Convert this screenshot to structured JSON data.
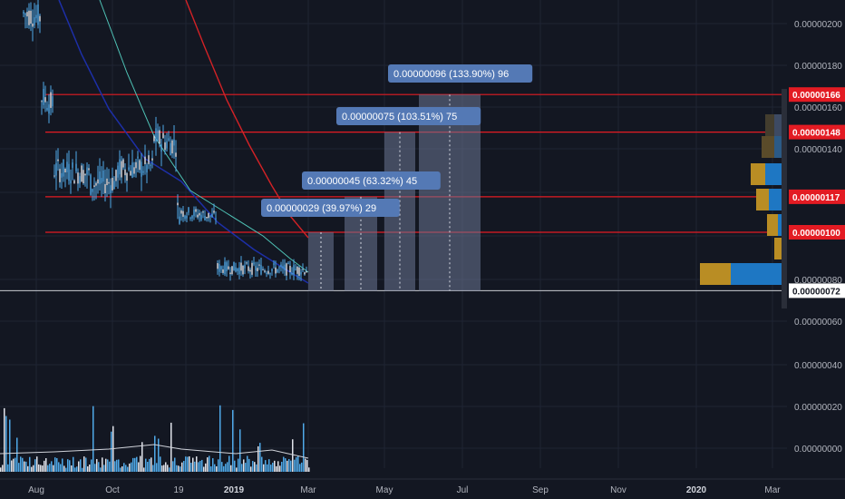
{
  "price_axis": {
    "ticks": [
      "0.00000200",
      "0.00000180",
      "0.00000160",
      "0.00000140",
      "0.00000100",
      "0.00000080",
      "0.00000060",
      "0.00000040",
      "0.00000020",
      "0.00000000"
    ]
  },
  "level_tags": [
    "0.00000166",
    "0.00000148",
    "0.00000117",
    "0.00000100"
  ],
  "current_price": "0.00000072",
  "time_axis": [
    "Aug",
    "Oct",
    "19",
    "2019",
    "Mar",
    "May",
    "Jul",
    "Sep",
    "Nov",
    "2020",
    "Mar"
  ],
  "callouts": [
    "0.00000029 (39.97%) 29",
    "0.00000045 (63.32%) 45",
    "0.00000075 (103.51%) 75",
    "0.00000096 (133.90%) 96"
  ],
  "colors": {
    "background": "#131722",
    "grid": "#1f2433",
    "candle_up": "#4fa9e8",
    "level_line": "#e31b23",
    "level_tag_bg": "#e31b23",
    "current_tag_bg": "#ffffff",
    "callout_bg": "#5479b5",
    "measure_fill": "#6c7793",
    "ma_fast": "#1d2fa8",
    "ma_mid": "#4fc3b6",
    "ma_slow": "#d32226",
    "volprofile_blue": "#1e77c3",
    "volprofile_gold": "#b98d24"
  }
}
